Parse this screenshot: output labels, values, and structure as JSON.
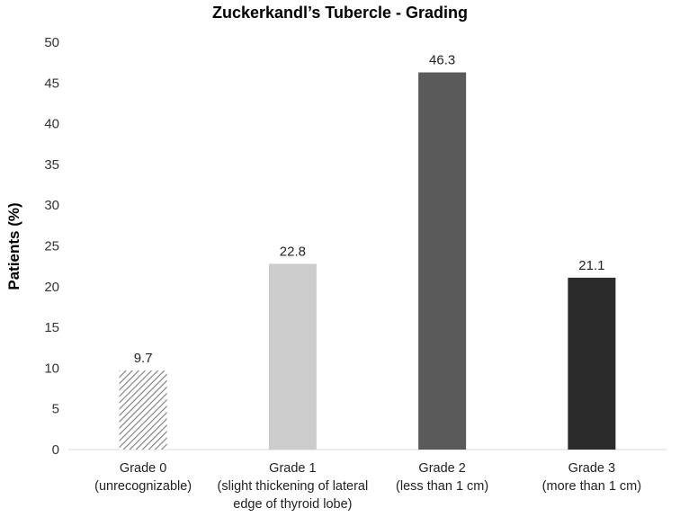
{
  "chart_data": {
    "type": "bar",
    "title": "Zuckerkandl’s Tubercle - Grading",
    "xlabel": "",
    "ylabel": "Patients (%)",
    "ylim": [
      0,
      50
    ],
    "yticks": [
      0,
      5,
      10,
      15,
      20,
      25,
      30,
      35,
      40,
      45,
      50
    ],
    "grid": false,
    "categories": [
      [
        "Grade 0",
        "(unrecognizable)"
      ],
      [
        "Grade 1",
        "(slight thickening of lateral",
        "edge of thyroid lobe)"
      ],
      [
        "Grade 2",
        "(less than 1 cm)"
      ],
      [
        "Grade 3",
        "(more than 1 cm)"
      ]
    ],
    "values": [
      9.7,
      22.8,
      46.3,
      21.1
    ],
    "data_labels": [
      "9.7",
      "22.8",
      "46.3",
      "21.1"
    ],
    "bar_colors": [
      "hatched",
      "#cccccc",
      "#5a5a5a",
      "#2b2b2b"
    ]
  }
}
